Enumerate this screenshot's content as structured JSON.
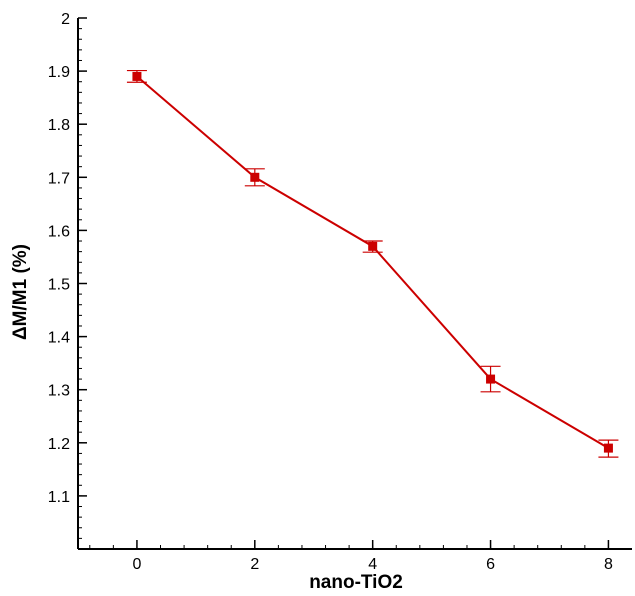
{
  "chart_data": {
    "type": "line",
    "title": "",
    "xlabel": "nano-TiO2",
    "ylabel": "ΔM/M1 (%)",
    "xlim": [
      -1,
      8.4
    ],
    "ylim": [
      1.0,
      2.0
    ],
    "x_ticks": [
      0,
      2,
      4,
      6,
      8
    ],
    "y_ticks": [
      1.1,
      1.2,
      1.3,
      1.4,
      1.5,
      1.6,
      1.7,
      1.8,
      1.9,
      2
    ],
    "x_tick_labels": [
      "0",
      "2",
      "4",
      "6",
      "8"
    ],
    "y_tick_labels": [
      "1.1",
      "1.2",
      "1.3",
      "1.4",
      "1.5",
      "1.6",
      "1.7",
      "1.8",
      "1.9",
      "2"
    ],
    "grid": false,
    "legend": "none",
    "series": [
      {
        "color": "#cc0000",
        "marker": "square",
        "x": [
          0,
          2,
          4,
          6,
          8
        ],
        "y": [
          1.89,
          1.7,
          1.57,
          1.32,
          1.19
        ],
        "error_low": [
          1.879,
          1.684,
          1.559,
          1.296,
          1.173
        ],
        "error_high": [
          1.901,
          1.716,
          1.58,
          1.344,
          1.205
        ]
      }
    ]
  }
}
